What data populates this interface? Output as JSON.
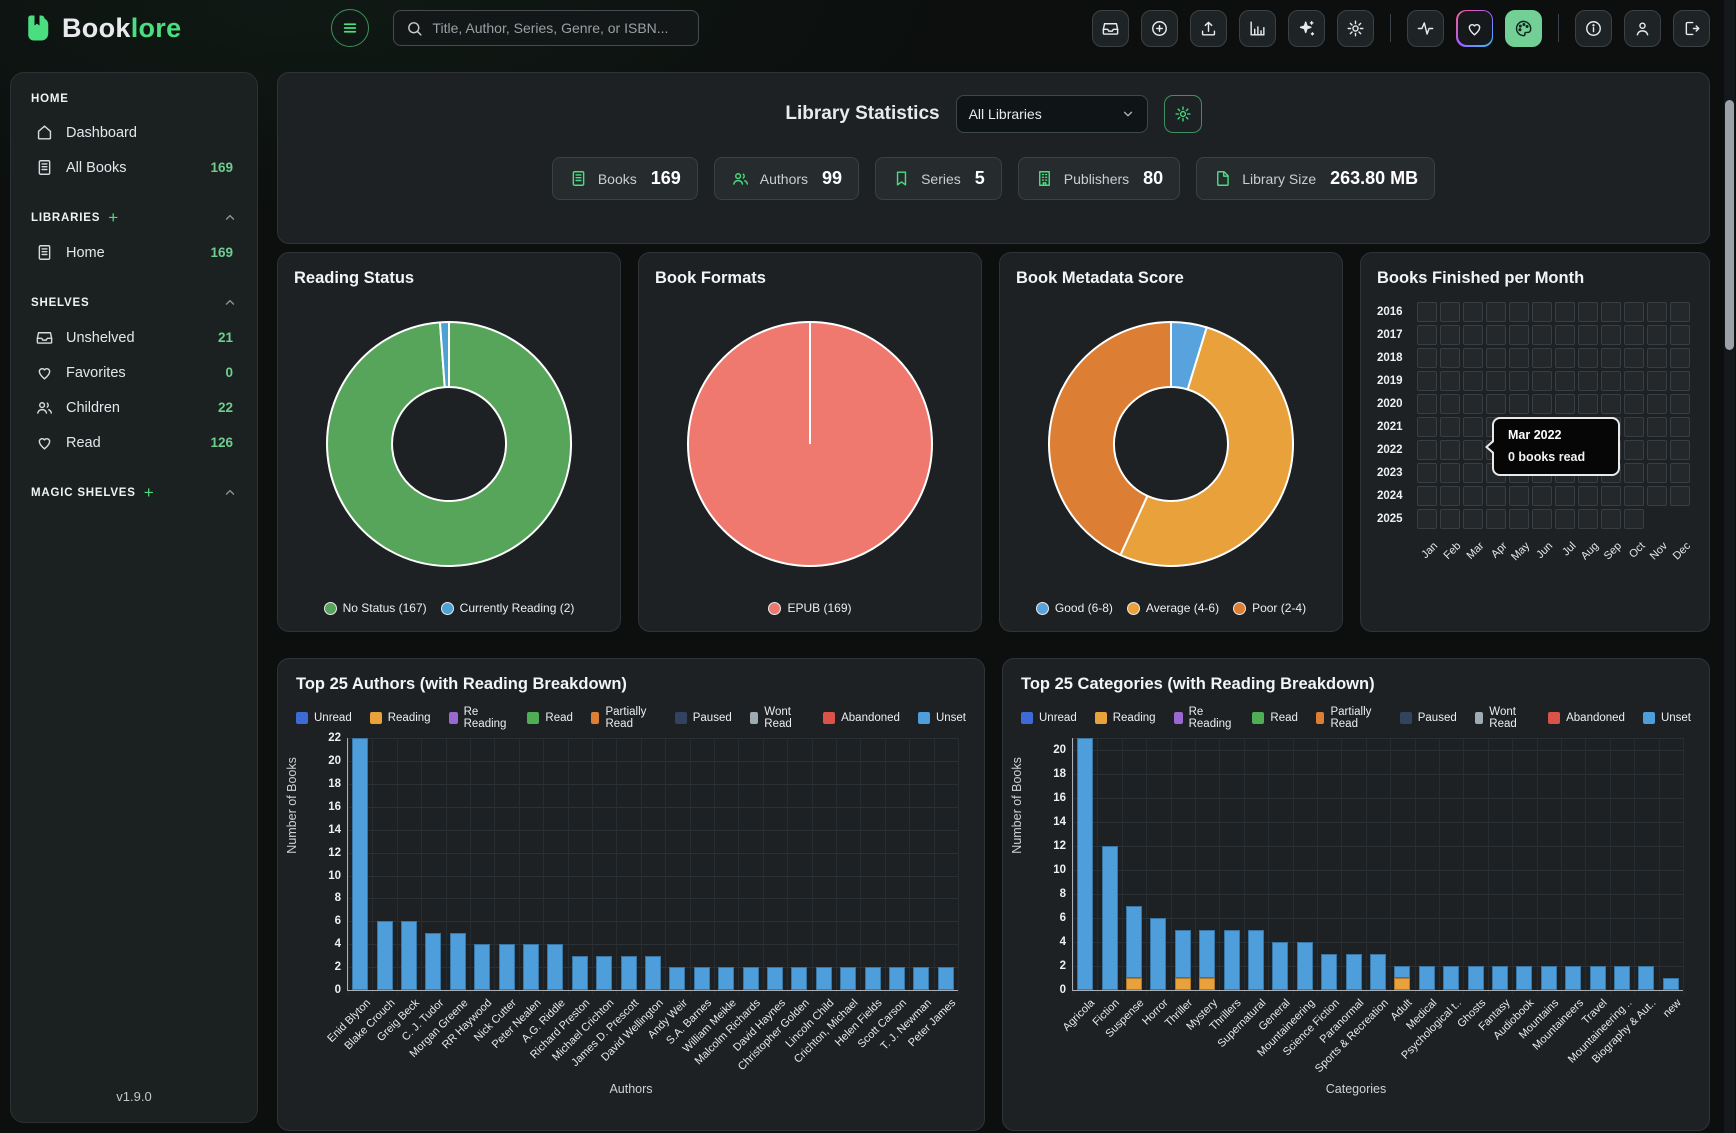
{
  "app": {
    "brand_book": "Book",
    "brand_lore": "lore",
    "version": "v1.9.0"
  },
  "topbar": {
    "search_placeholder": "Title, Author, Series, Genre, or ISBN...",
    "icon_groups": [
      [
        "inbox",
        "plus-circle",
        "upload",
        "bar-chart",
        "sparkles",
        "gear"
      ],
      [
        "activity",
        "heart",
        "palette"
      ],
      [
        "info",
        "user",
        "logout"
      ]
    ]
  },
  "sidebar": {
    "sections": [
      {
        "title": "HOME",
        "has_add": false,
        "collapsible": false,
        "items": [
          {
            "icon": "home",
            "label": "Dashboard",
            "count": ""
          },
          {
            "icon": "book",
            "label": "All Books",
            "count": "169"
          }
        ]
      },
      {
        "title": "LIBRARIES",
        "has_add": true,
        "collapsible": true,
        "items": [
          {
            "icon": "book",
            "label": "Home",
            "count": "169"
          }
        ]
      },
      {
        "title": "SHELVES",
        "has_add": false,
        "collapsible": true,
        "items": [
          {
            "icon": "inbox",
            "label": "Unshelved",
            "count": "21"
          },
          {
            "icon": "heart",
            "label": "Favorites",
            "count": "0"
          },
          {
            "icon": "users",
            "label": "Children",
            "count": "22"
          },
          {
            "icon": "heart",
            "label": "Read",
            "count": "126"
          }
        ]
      },
      {
        "title": "MAGIC SHELVES",
        "has_add": true,
        "collapsible": true,
        "items": []
      }
    ]
  },
  "stats": {
    "title": "Library Statistics",
    "selector_value": "All Libraries",
    "chips": [
      {
        "icon": "book",
        "label": "Books",
        "value": "169"
      },
      {
        "icon": "users",
        "label": "Authors",
        "value": "99"
      },
      {
        "icon": "bookmark",
        "label": "Series",
        "value": "5"
      },
      {
        "icon": "building",
        "label": "Publishers",
        "value": "80"
      },
      {
        "icon": "file",
        "label": "Library Size",
        "value": "263.80 MB"
      }
    ]
  },
  "chart_data": [
    {
      "type": "pie",
      "variant": "donut",
      "title": "Reading Status",
      "labels": [
        "No Status (167)",
        "Currently Reading (2)"
      ],
      "values": [
        167,
        2
      ],
      "colors": [
        "#57a45b",
        "#4ea1d3"
      ],
      "legend_position": "bottom"
    },
    {
      "type": "pie",
      "variant": "pie",
      "title": "Book Formats",
      "labels": [
        "EPUB (169)"
      ],
      "values": [
        169
      ],
      "colors": [
        "#f0796f"
      ],
      "legend_position": "bottom"
    },
    {
      "type": "pie",
      "variant": "donut",
      "title": "Book Metadata Score",
      "labels": [
        "Good (6-8)",
        "Average (4-6)",
        "Poor (2-4)"
      ],
      "values": [
        8,
        88,
        73
      ],
      "colors": [
        "#58a3dd",
        "#e9a23b",
        "#dc7e33"
      ],
      "legend_position": "bottom"
    },
    {
      "type": "heatmap",
      "title": "Books Finished per Month",
      "years": [
        "2016",
        "2017",
        "2018",
        "2019",
        "2020",
        "2021",
        "2022",
        "2023",
        "2024",
        "2025"
      ],
      "months": [
        "Jan",
        "Feb",
        "Mar",
        "Apr",
        "May",
        "Jun",
        "Jul",
        "Aug",
        "Sep",
        "Oct",
        "Nov",
        "Dec"
      ],
      "months_in_last_year": 10,
      "all_values": 0,
      "tooltip": {
        "title": "Mar 2022",
        "body": "0 books read",
        "year": "2022",
        "month": "Mar"
      }
    },
    {
      "type": "bar",
      "title": "Top 25 Authors (with Reading Breakdown)",
      "xlabel": "Authors",
      "ylabel": "Number of Books",
      "ylim": [
        0,
        22
      ],
      "tick_step": 2,
      "grid": true,
      "legend_position": "top",
      "legend": [
        {
          "label": "Unread",
          "color": "#3e6ad6"
        },
        {
          "label": "Reading",
          "color": "#e9a23b"
        },
        {
          "label": "Re Reading",
          "color": "#9a68d0"
        },
        {
          "label": "Read",
          "color": "#4fae54"
        },
        {
          "label": "Partially Read",
          "color": "#dc7e33"
        },
        {
          "label": "Paused",
          "color": "#31435f"
        },
        {
          "label": "Wont Read",
          "color": "#9fabb3"
        },
        {
          "label": "Abandoned",
          "color": "#d9534a"
        },
        {
          "label": "Unset",
          "color": "#4d9edb"
        }
      ],
      "categories": [
        "Enid Blyton",
        "Blake Crouch",
        "Greig Beck",
        "C. J. Tudor",
        "Morgan Greene",
        "RR Haywood",
        "Nick Cutter",
        "Peter Nealen",
        "A.G. Riddle",
        "Richard Preston",
        "Michael Crichton",
        "James D. Prescott",
        "David Wellington",
        "Andy Weir",
        "S.A. Barnes",
        "William Meikle",
        "Malcolm Richards",
        "David Haynes",
        "Christopher Golden",
        "Lincoln Child",
        "Crichton, Michael",
        "Helen Fields",
        "Scott Carson",
        "T. J. Newman",
        "Peter James"
      ],
      "series": [
        {
          "name": "Reading",
          "color": "#e9a23b",
          "values": [
            0,
            0,
            0,
            0,
            0,
            0,
            0,
            0,
            0,
            0,
            0,
            0,
            0,
            0,
            0,
            0,
            0,
            0,
            0,
            0,
            0,
            0,
            0,
            0,
            0
          ]
        },
        {
          "name": "Unset",
          "color": "#4d9edb",
          "values": [
            22,
            6,
            6,
            5,
            5,
            4,
            4,
            4,
            4,
            3,
            3,
            3,
            3,
            2,
            2,
            2,
            2,
            2,
            2,
            2,
            2,
            2,
            2,
            2,
            2
          ]
        }
      ]
    },
    {
      "type": "bar",
      "title": "Top 25 Categories (with Reading Breakdown)",
      "xlabel": "Categories",
      "ylabel": "Number of Books",
      "ylim": [
        0,
        21
      ],
      "tick_step": 2,
      "grid": true,
      "legend_position": "top",
      "legend": [
        {
          "label": "Unread",
          "color": "#3e6ad6"
        },
        {
          "label": "Reading",
          "color": "#e9a23b"
        },
        {
          "label": "Re Reading",
          "color": "#9a68d0"
        },
        {
          "label": "Read",
          "color": "#4fae54"
        },
        {
          "label": "Partially Read",
          "color": "#dc7e33"
        },
        {
          "label": "Paused",
          "color": "#31435f"
        },
        {
          "label": "Wont Read",
          "color": "#9fabb3"
        },
        {
          "label": "Abandoned",
          "color": "#d9534a"
        },
        {
          "label": "Unset",
          "color": "#4d9edb"
        }
      ],
      "categories": [
        "Agricola",
        "Fiction",
        "Suspense",
        "Horror",
        "Thriller",
        "Mystery",
        "Thrillers",
        "Supernatural",
        "General",
        "Mountaineering",
        "Science Fiction",
        "Paranormal",
        "Sports & Recreation",
        "Adult",
        "Medical",
        "Psychological t..",
        "Ghosts",
        "Fantasy",
        "Audiobook",
        "Mountains",
        "Mountaineers",
        "Travel",
        "Mountaineering ..",
        "Biography & Aut..",
        "new"
      ],
      "series": [
        {
          "name": "Reading",
          "color": "#e9a23b",
          "values": [
            0,
            0,
            1,
            0,
            1,
            1,
            0,
            0,
            0,
            0,
            0,
            0,
            0,
            1,
            0,
            0,
            0,
            0,
            0,
            0,
            0,
            0,
            0,
            0,
            0
          ]
        },
        {
          "name": "Unset",
          "color": "#4d9edb",
          "values": [
            21,
            12,
            6,
            6,
            4,
            4,
            5,
            5,
            4,
            4,
            3,
            3,
            3,
            1,
            2,
            2,
            2,
            2,
            2,
            2,
            2,
            2,
            2,
            2,
            1
          ]
        }
      ]
    }
  ]
}
